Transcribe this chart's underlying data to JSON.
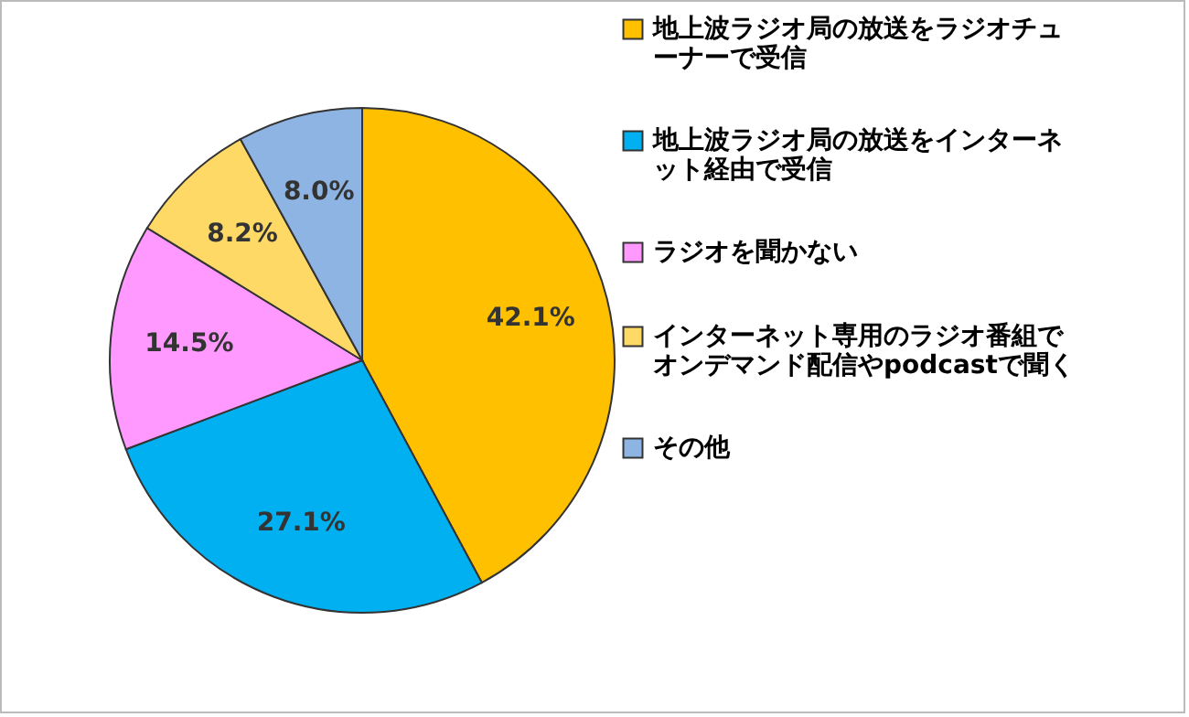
{
  "chart_data": {
    "type": "pie",
    "categories": [
      "地上波ラジオ局の放送をラジオチューナーで受信",
      "地上波ラジオ局の放送をインターネット経由で受信",
      "ラジオを聞かない",
      "インターネット専用のラジオ番組でオンデマンド配信やpodcastで聞く",
      "その他"
    ],
    "values": [
      42.1,
      27.1,
      14.5,
      8.2,
      8.0
    ],
    "colors": [
      "#ffc000",
      "#00b0f0",
      "#ff99ff",
      "#ffd966",
      "#8db4e2"
    ],
    "value_labels": [
      "42.1%",
      "27.1%",
      "14.5%",
      "8.2%",
      "8.0%"
    ],
    "legend": "right"
  }
}
